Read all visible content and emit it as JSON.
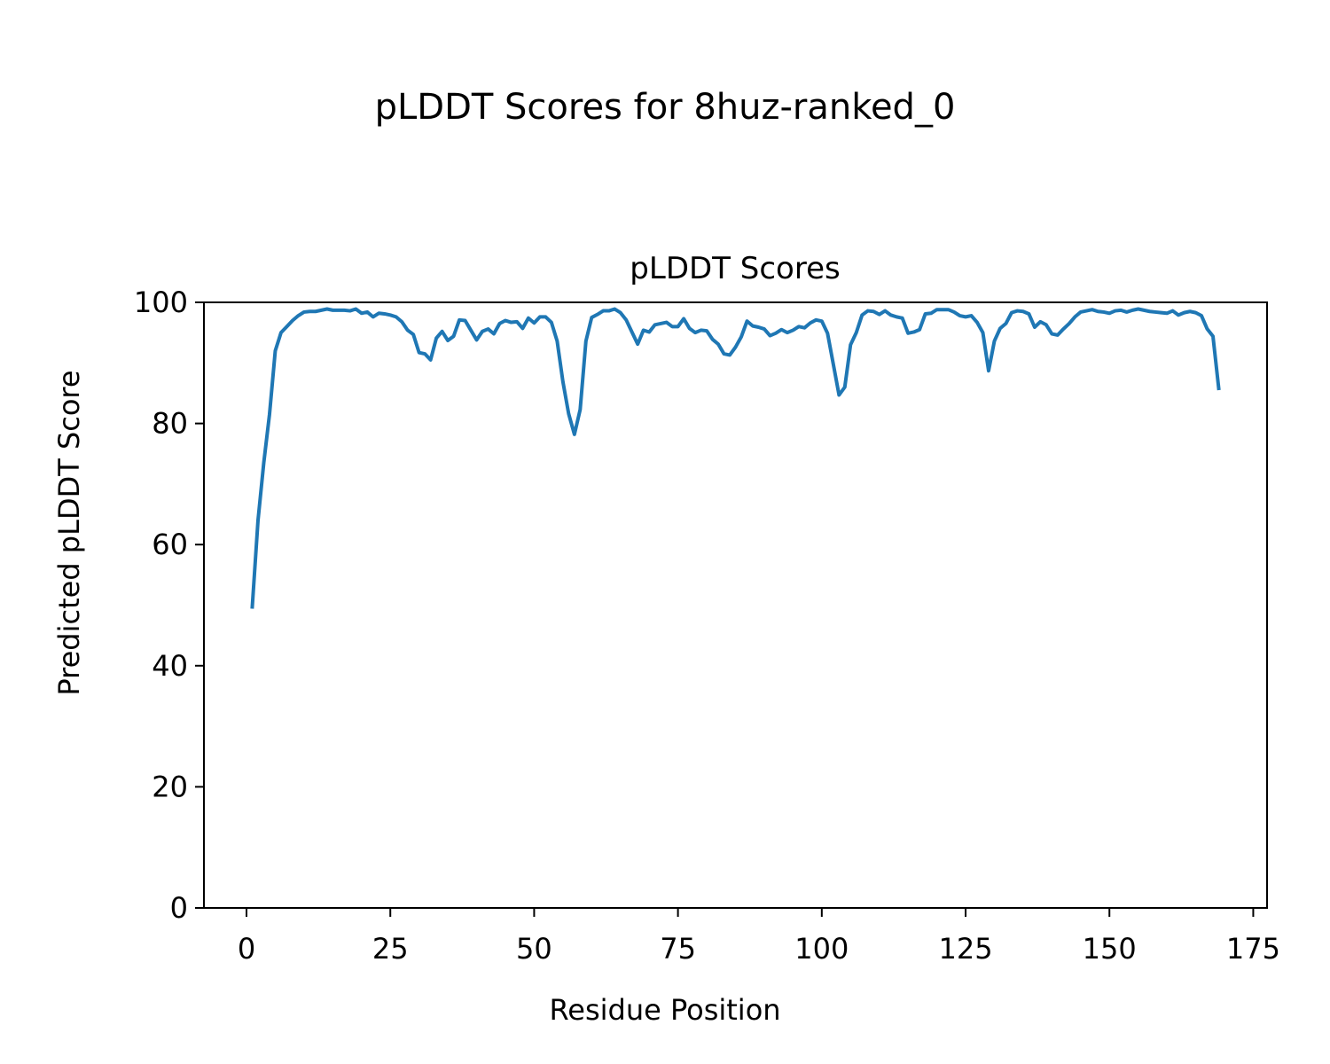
{
  "figure": {
    "suptitle": "pLDDT Scores for 8huz-ranked_0"
  },
  "chart_data": {
    "type": "line",
    "title": "pLDDT Scores",
    "xlabel": "Residue Position",
    "ylabel": "Predicted pLDDT Score",
    "xlim": [
      -7.4,
      177.4
    ],
    "ylim": [
      0,
      100
    ],
    "xticks": [
      0,
      25,
      50,
      75,
      100,
      125,
      150,
      175
    ],
    "yticks": [
      0,
      20,
      40,
      60,
      80,
      100
    ],
    "grid": false,
    "line_color": "#1f77b4",
    "series": [
      {
        "x": [
          1,
          2,
          3,
          4,
          5,
          6,
          7,
          8,
          9,
          10,
          11,
          12,
          13,
          14,
          15,
          16,
          17,
          18,
          19,
          20,
          21,
          22,
          23,
          24,
          25,
          26,
          27,
          28,
          29,
          30,
          31,
          32,
          33,
          34,
          35,
          36,
          37,
          38,
          39,
          40,
          41,
          42,
          43,
          44,
          45,
          46,
          47,
          48,
          49,
          50,
          51,
          52,
          53,
          54,
          55,
          56,
          57,
          58,
          59,
          60,
          61,
          62,
          63,
          64,
          65,
          66,
          67,
          68,
          69,
          70,
          71,
          72,
          73,
          74,
          75,
          76,
          77,
          78,
          79,
          80,
          81,
          82,
          83,
          84,
          85,
          86,
          87,
          88,
          89,
          90,
          91,
          92,
          93,
          94,
          95,
          96,
          97,
          98,
          99,
          100,
          101,
          102,
          103,
          104,
          105,
          106,
          107,
          108,
          109,
          110,
          111,
          112,
          113,
          114,
          115,
          116,
          117,
          118,
          119,
          120,
          121,
          122,
          123,
          124,
          125,
          126,
          127,
          128,
          129,
          130,
          131,
          132,
          133,
          134,
          135,
          136,
          137,
          138,
          139,
          140,
          141,
          142,
          143,
          144,
          145,
          146,
          147,
          148,
          149,
          150,
          151,
          152,
          153,
          154,
          155,
          156,
          157,
          158,
          159,
          160,
          161,
          162,
          163,
          164,
          165,
          166,
          167,
          168,
          169
        ],
        "values": [
          49.7,
          64.0,
          73.5,
          81.5,
          92.0,
          95.0,
          96.0,
          97.0,
          97.8,
          98.4,
          98.5,
          98.5,
          98.7,
          98.9,
          98.7,
          98.7,
          98.7,
          98.6,
          98.9,
          98.2,
          98.4,
          97.6,
          98.2,
          98.1,
          97.9,
          97.6,
          96.8,
          95.4,
          94.7,
          91.7,
          91.5,
          90.5,
          94.1,
          95.2,
          93.7,
          94.4,
          97.1,
          97.0,
          95.4,
          93.8,
          95.2,
          95.6,
          94.8,
          96.5,
          97.0,
          96.7,
          96.8,
          95.7,
          97.4,
          96.6,
          97.6,
          97.6,
          96.7,
          93.6,
          86.9,
          81.6,
          78.2,
          82.3,
          93.6,
          97.5,
          98.0,
          98.6,
          98.6,
          98.9,
          98.3,
          97.1,
          95.1,
          93.1,
          95.4,
          95.1,
          96.3,
          96.5,
          96.7,
          96.0,
          96.0,
          97.3,
          95.7,
          95.0,
          95.4,
          95.3,
          93.9,
          93.1,
          91.5,
          91.3,
          92.6,
          94.3,
          96.9,
          96.1,
          95.9,
          95.6,
          94.5,
          94.9,
          95.5,
          95.0,
          95.4,
          96.0,
          95.8,
          96.6,
          97.1,
          96.9,
          94.9,
          89.8,
          84.7,
          86.0,
          93.0,
          95.0,
          97.9,
          98.6,
          98.5,
          98.0,
          98.6,
          97.9,
          97.6,
          97.4,
          94.9,
          95.1,
          95.5,
          98.1,
          98.2,
          98.8,
          98.8,
          98.8,
          98.4,
          97.8,
          97.6,
          97.8,
          96.7,
          95.0,
          88.7,
          93.6,
          95.7,
          96.5,
          98.3,
          98.6,
          98.5,
          98.1,
          95.9,
          96.8,
          96.3,
          94.8,
          94.6,
          95.6,
          96.5,
          97.6,
          98.4,
          98.6,
          98.8,
          98.5,
          98.4,
          98.2,
          98.6,
          98.7,
          98.4,
          98.7,
          98.9,
          98.7,
          98.5,
          98.4,
          98.3,
          98.2,
          98.6,
          97.9,
          98.3,
          98.5,
          98.3,
          97.8,
          95.6,
          94.4,
          85.8
        ]
      }
    ]
  }
}
